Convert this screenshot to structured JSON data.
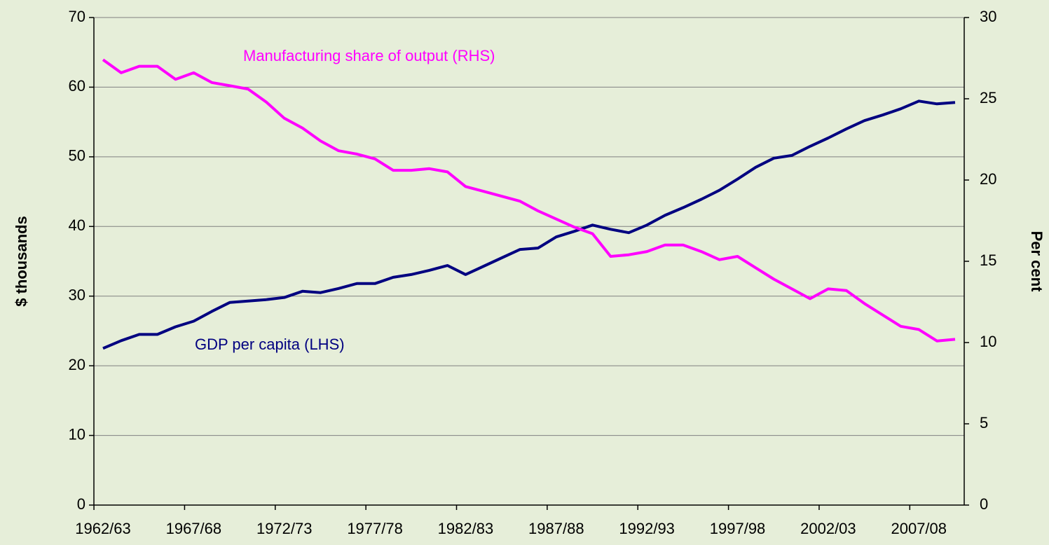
{
  "chart_data": {
    "type": "line",
    "y_label": "$ thousands",
    "y2_label": "Per cent",
    "annotations": [
      "Manufacturing share of output (RHS)",
      "GDP per capita (LHS)"
    ],
    "categories": [
      "1962/63",
      null,
      null,
      null,
      null,
      "1967/68",
      null,
      null,
      null,
      null,
      "1972/73",
      null,
      null,
      null,
      null,
      "1977/78",
      null,
      null,
      null,
      null,
      "1982/83",
      null,
      null,
      null,
      null,
      "1987/88",
      null,
      null,
      null,
      null,
      "1992/93",
      null,
      null,
      null,
      null,
      "1997/98",
      null,
      null,
      null,
      null,
      "2002/03",
      null,
      null,
      null,
      null,
      "2007/08",
      null,
      null
    ],
    "series": [
      {
        "name": "GDP per capita (LHS)",
        "color": "#000080",
        "axis": "y",
        "values": [
          22.5,
          23.6,
          24.5,
          24.5,
          25.6,
          26.4,
          27.8,
          29.1,
          29.3,
          29.5,
          29.8,
          30.7,
          30.5,
          31.1,
          31.8,
          31.8,
          32.7,
          33.1,
          33.7,
          34.4,
          33.1,
          34.3,
          35.5,
          36.7,
          36.9,
          38.5,
          39.3,
          40.2,
          39.6,
          39.1,
          40.2,
          41.6,
          42.7,
          43.9,
          45.2,
          46.8,
          48.5,
          49.8,
          50.2,
          51.5,
          52.7,
          54.0,
          55.2,
          56.0,
          56.9,
          58.0,
          57.6,
          57.8
        ]
      },
      {
        "name": "Manufacturing share of output (RHS)",
        "color": "#ff00ff",
        "axis": "y2",
        "values": [
          27.4,
          26.6,
          27.0,
          27.0,
          26.2,
          26.6,
          26.0,
          25.8,
          25.6,
          24.8,
          23.8,
          23.2,
          22.4,
          21.8,
          21.6,
          21.3,
          20.6,
          20.6,
          20.7,
          20.5,
          19.6,
          19.3,
          19.0,
          18.7,
          18.1,
          17.6,
          17.1,
          16.7,
          15.3,
          15.4,
          15.6,
          16.0,
          16.0,
          15.6,
          15.1,
          15.3,
          14.6,
          13.9,
          13.3,
          12.7,
          13.3,
          13.2,
          12.4,
          11.7,
          11.0,
          10.8,
          10.1,
          10.2
        ]
      }
    ],
    "ylim": [
      0,
      70
    ],
    "yticks": [
      0,
      10,
      20,
      30,
      40,
      50,
      60,
      70
    ],
    "y2lim": [
      0,
      30
    ],
    "y2ticks": [
      0,
      5,
      10,
      15,
      20,
      25,
      30
    ],
    "grid": true
  }
}
